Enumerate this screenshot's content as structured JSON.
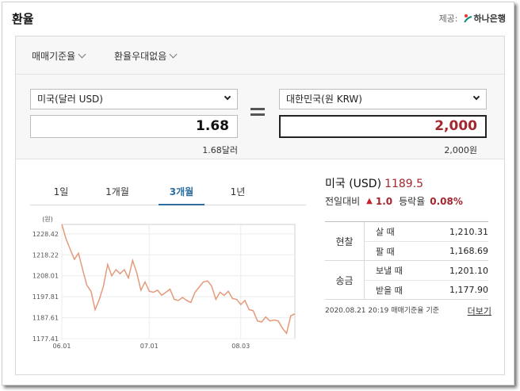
{
  "header": {
    "title": "환율",
    "provider_label": "제공:",
    "provider_name": "하나은행"
  },
  "filters": [
    {
      "label": "매매기준율"
    },
    {
      "label": "환율우대없음"
    }
  ],
  "converter": {
    "from_currency": "미국(달러 USD)",
    "from_amount": "1.68",
    "from_unit_text": "1.68달러",
    "to_currency": "대한민국(원 KRW)",
    "to_amount": "2,000",
    "to_unit_text": "2,000원"
  },
  "tabs": [
    {
      "label": "1일"
    },
    {
      "label": "1개월"
    },
    {
      "label": "3개월",
      "active": true
    },
    {
      "label": "1년"
    }
  ],
  "chart_data": {
    "type": "line",
    "ylabel": "(원)",
    "y_ticks": [
      "1228.42",
      "1218.22",
      "1208.01",
      "1197.81",
      "1187.61",
      "1177.41"
    ],
    "ylim": [
      1177.41,
      1233.0
    ],
    "x_ticks": [
      {
        "label": "06.01",
        "index": 0
      },
      {
        "label": "07.01",
        "index": 21
      },
      {
        "label": "08.03",
        "index": 43
      }
    ],
    "grid": true,
    "color": "#e39a7a",
    "series": [
      {
        "values": [
          1233.0,
          1226.0,
          1221.0,
          1216.0,
          1219.0,
          1211.0,
          1203.5,
          1200.5,
          1191.5,
          1196.5,
          1203.0,
          1213.5,
          1208.0,
          1211.0,
          1209.0,
          1211.0,
          1207.0,
          1215.5,
          1209.5,
          1201.0,
          1205.0,
          1200.5,
          1200.0,
          1201.0,
          1198.5,
          1200.0,
          1201.5,
          1196.5,
          1196.0,
          1197.5,
          1196.0,
          1195.0,
          1200.0,
          1202.5,
          1205.0,
          1205.5,
          1203.0,
          1196.5,
          1200.0,
          1198.5,
          1200.5,
          1197.0,
          1196.5,
          1194.0,
          1196.0,
          1191.5,
          1191.0,
          1186.0,
          1185.5,
          1188.0,
          1186.0,
          1186.5,
          1186.0,
          1182.5,
          1180.0,
          1188.5,
          1189.5
        ]
      }
    ]
  },
  "info": {
    "country": "미국 (USD)",
    "rate": "1189.5",
    "change_label": "전일대비",
    "change_arrow": "▲",
    "change_value": "1.0",
    "ratio_label": "등락율",
    "ratio_value": "0.08%"
  },
  "rates": {
    "groups": [
      {
        "name": "현찰",
        "rows": [
          {
            "label": "살 때",
            "value": "1,210.31"
          },
          {
            "label": "팔 때",
            "value": "1,168.69"
          }
        ]
      },
      {
        "name": "송금",
        "rows": [
          {
            "label": "보낼 때",
            "value": "1,201.10"
          },
          {
            "label": "받을 때",
            "value": "1,177.90"
          }
        ]
      }
    ]
  },
  "footnote": {
    "timestamp": "2020.08.21 20:19 매매기준율 기준",
    "more_label": "더보기"
  }
}
